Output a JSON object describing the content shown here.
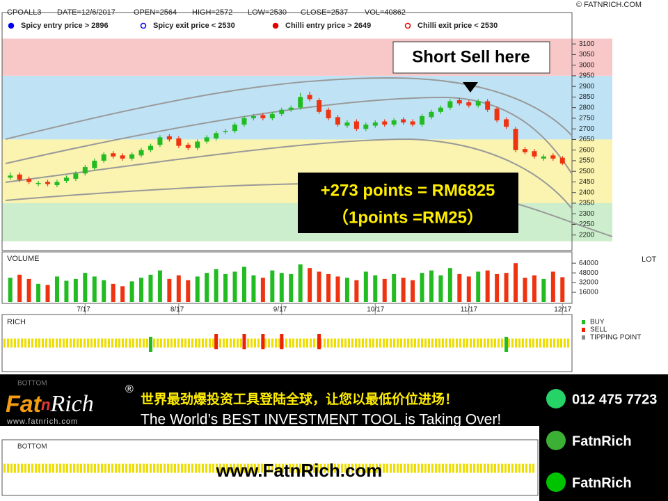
{
  "header": {
    "symbol": "CPOALL3",
    "date": "DATE=12/6/2017",
    "open": "OPEN=2564",
    "high": "HIGH=2572",
    "low": "LOW=2530",
    "close": "CLOSE=2537",
    "vol": "VOL=40862",
    "copyright": "© FATNRICH.COM"
  },
  "signal_legend": [
    {
      "label": "Spicy entry price > 2896",
      "color": "#0000ee",
      "filled": true
    },
    {
      "label": "Spicy exit price < 2530",
      "color": "#0000ee",
      "filled": false
    },
    {
      "label": "Chilli entry price > 2649",
      "color": "#e00000",
      "filled": true
    },
    {
      "label": "Chilli exit price < 2530",
      "color": "#e00000",
      "filled": false
    }
  ],
  "chart_data": [
    {
      "type": "candlestick",
      "categories": [
        null,
        null,
        null,
        null,
        null,
        null,
        null,
        null,
        "7/17",
        null,
        null,
        null,
        null,
        null,
        null,
        null,
        null,
        null,
        "8/17",
        null,
        null,
        null,
        null,
        null,
        null,
        null,
        null,
        null,
        null,
        "9/17",
        null,
        null,
        null,
        null,
        null,
        null,
        null,
        null,
        null,
        "10/17",
        null,
        null,
        null,
        null,
        null,
        null,
        null,
        null,
        null,
        "11/17",
        null,
        null,
        null,
        null,
        null,
        null,
        null,
        null,
        null,
        "12/17"
      ],
      "open": [
        2470,
        2485,
        2465,
        2440,
        2450,
        2435,
        2455,
        2465,
        2490,
        2515,
        2550,
        2585,
        2575,
        2560,
        2575,
        2600,
        2625,
        2665,
        2655,
        2625,
        2610,
        2640,
        2655,
        2685,
        2690,
        2720,
        2750,
        2765,
        2750,
        2770,
        2790,
        2800,
        2860,
        2835,
        2790,
        2755,
        2715,
        2735,
        2700,
        2715,
        2735,
        2720,
        2745,
        2735,
        2720,
        2755,
        2780,
        2800,
        2835,
        2825,
        2810,
        2830,
        2795,
        2745,
        2700,
        2605,
        2595,
        2560,
        2575,
        2564
      ],
      "high": [
        2495,
        2495,
        2475,
        2455,
        2460,
        2460,
        2480,
        2500,
        2530,
        2560,
        2590,
        2595,
        2585,
        2590,
        2610,
        2630,
        2670,
        2675,
        2665,
        2635,
        2650,
        2670,
        2690,
        2700,
        2730,
        2760,
        2770,
        2775,
        2780,
        2800,
        2810,
        2870,
        2875,
        2845,
        2800,
        2765,
        2740,
        2745,
        2730,
        2740,
        2745,
        2750,
        2755,
        2745,
        2770,
        2790,
        2810,
        2840,
        2845,
        2835,
        2840,
        2840,
        2805,
        2755,
        2710,
        2615,
        2605,
        2580,
        2585,
        2572
      ],
      "low": [
        2460,
        2450,
        2440,
        2430,
        2430,
        2425,
        2445,
        2455,
        2480,
        2505,
        2540,
        2560,
        2550,
        2550,
        2565,
        2590,
        2615,
        2640,
        2610,
        2600,
        2600,
        2630,
        2645,
        2675,
        2680,
        2710,
        2740,
        2740,
        2740,
        2760,
        2780,
        2790,
        2830,
        2770,
        2740,
        2710,
        2705,
        2690,
        2690,
        2705,
        2710,
        2710,
        2720,
        2710,
        2710,
        2745,
        2770,
        2790,
        2810,
        2800,
        2800,
        2780,
        2730,
        2700,
        2590,
        2580,
        2560,
        2550,
        2550,
        2530
      ],
      "close": [
        2480,
        2460,
        2450,
        2445,
        2440,
        2450,
        2470,
        2490,
        2520,
        2550,
        2580,
        2570,
        2560,
        2580,
        2600,
        2620,
        2660,
        2650,
        2620,
        2610,
        2640,
        2660,
        2680,
        2690,
        2720,
        2750,
        2760,
        2750,
        2770,
        2790,
        2800,
        2850,
        2840,
        2780,
        2750,
        2720,
        2730,
        2700,
        2720,
        2730,
        2720,
        2740,
        2730,
        2720,
        2760,
        2780,
        2800,
        2830,
        2820,
        2810,
        2830,
        2790,
        2740,
        2710,
        2600,
        2590,
        2570,
        2570,
        2560,
        2537
      ],
      "up_color": "#22bb22",
      "down_color": "#ee3311",
      "ylim": [
        2127,
        3248
      ],
      "yticks": [
        2200,
        2250,
        2300,
        2350,
        2400,
        2450,
        2500,
        2550,
        2600,
        2650,
        2700,
        2750,
        2800,
        2850,
        2900,
        2950,
        3000,
        3050,
        3100
      ],
      "grid": true,
      "zones": [
        {
          "from": 2950,
          "to": 3125,
          "color": "#f8c8c8"
        },
        {
          "from": 2650,
          "to": 2950,
          "color": "#bfe3f5"
        },
        {
          "from": 2350,
          "to": 2650,
          "color": "#fbf3b0"
        },
        {
          "from": 2170,
          "to": 2350,
          "color": "#cdeecd"
        }
      ]
    },
    {
      "type": "bar",
      "title": "VOLUME",
      "unit": "LOT",
      "values": [
        40000,
        45000,
        38000,
        30000,
        28000,
        42000,
        35000,
        38000,
        48000,
        42000,
        36000,
        30000,
        26000,
        34000,
        40000,
        45000,
        52000,
        38000,
        44000,
        36000,
        42000,
        48000,
        54000,
        46000,
        50000,
        58000,
        44000,
        40000,
        52000,
        48000,
        46000,
        62000,
        56000,
        50000,
        46000,
        42000,
        40000,
        36000,
        50000,
        44000,
        38000,
        46000,
        40000,
        36000,
        48000,
        52000,
        44000,
        56000,
        46000,
        42000,
        50000,
        52000,
        46000,
        48000,
        64000,
        40000,
        44000,
        38000,
        50000,
        40862
      ],
      "ylim": [
        0,
        78000
      ],
      "yticks": [
        16000,
        32000,
        48000,
        64000
      ]
    }
  ],
  "annotations": {
    "short_sell": "Short Sell here",
    "profit": "+273 points = RM6825",
    "rate": "（1points =RM25）"
  },
  "rich_panel": {
    "title": "RICH",
    "buy_at": [
      15,
      53
    ],
    "sell_at": [
      22,
      25,
      27,
      29,
      33
    ],
    "legend": [
      {
        "label": "BUY",
        "color": "#22bb22"
      },
      {
        "label": "SELL",
        "color": "#ee2200"
      },
      {
        "label": "TIPPING POINT",
        "color": "#888888"
      }
    ]
  },
  "bottom_panel": {
    "labels": [
      "BOTTOM",
      "BOTTOM"
    ]
  },
  "banner": {
    "logo_a": "Fat",
    "logo_n": "n",
    "logo_b": "Rich",
    "reg": "®",
    "logo_url": "www.fatnrich.com",
    "chinese": "世界最劲爆投资工具登陆全球，让您以最低价位进场！",
    "english": "The World’s BEST INVESTMENT TOOL is Taking Over!"
  },
  "contacts": [
    {
      "text": "012 475 7723",
      "color": "#25d366"
    },
    {
      "text": "FatnRich",
      "color": "#3cb034"
    },
    {
      "text": "FatnRich",
      "color": "#00c300"
    }
  ],
  "website": "www.FatnRich.com"
}
